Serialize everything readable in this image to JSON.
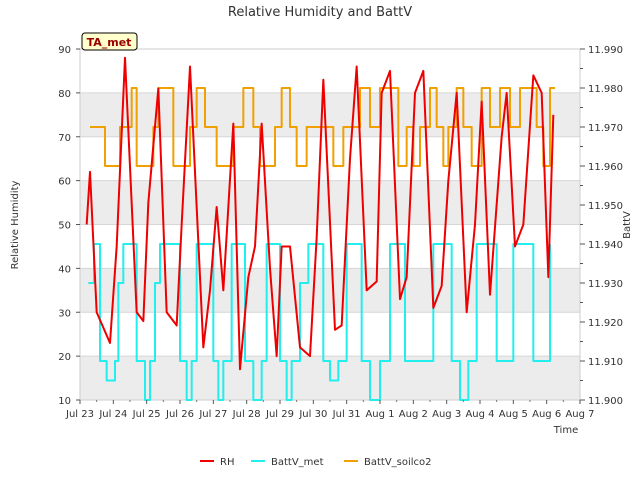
{
  "chart_data": {
    "type": "line",
    "title": "Relative Humidity and BattV",
    "xlabel": "Time",
    "ylabel": "Relative Humidity",
    "y2label": "BattV",
    "annotation": "TA_met",
    "xlim": [
      0,
      15
    ],
    "x_ticks": [
      0,
      1,
      2,
      3,
      4,
      5,
      6,
      7,
      8,
      9,
      10,
      11,
      12,
      13,
      14,
      15
    ],
    "x_tick_labels": [
      "Jul 23",
      "Jul 24",
      "Jul 25",
      "Jul 26",
      "Jul 27",
      "Jul 28",
      "Jul 29",
      "Jul 30",
      "Jul 31",
      "Aug 1",
      "Aug 2",
      "Aug 3",
      "Aug 4",
      "Aug 5",
      "Aug 6",
      "Aug 7"
    ],
    "ylim": [
      10,
      90
    ],
    "y_ticks": [
      10,
      20,
      30,
      40,
      50,
      60,
      70,
      80,
      90
    ],
    "y_tick_labels": [
      "10",
      "20",
      "30",
      "40",
      "50",
      "60",
      "70",
      "80",
      "90"
    ],
    "y2lim": [
      11.9,
      11.99
    ],
    "y2_ticks": [
      11.9,
      11.91,
      11.92,
      11.93,
      11.94,
      11.95,
      11.96,
      11.97,
      11.98,
      11.99
    ],
    "y2_tick_labels": [
      "11.900",
      "11.910",
      "11.920",
      "11.930",
      "11.940",
      "11.950",
      "11.960",
      "11.970",
      "11.980",
      "11.990"
    ],
    "grid": true,
    "legend_position": "bottom",
    "colors": {
      "RH": "#ee0000",
      "BattV_met": "#22eeee",
      "BattV_soilco2": "#f0a000",
      "band": "#ececec",
      "annotation_bg": "#ffffcc",
      "annotation_text": "#990000"
    },
    "series": [
      {
        "name": "RH",
        "axis": "left",
        "x": [
          0.2,
          0.3,
          0.5,
          0.9,
          1.1,
          1.35,
          1.7,
          1.9,
          2.05,
          2.35,
          2.6,
          2.9,
          3.05,
          3.3,
          3.7,
          3.9,
          4.1,
          4.3,
          4.6,
          4.8,
          5.05,
          5.25,
          5.45,
          5.7,
          5.9,
          6.05,
          6.3,
          6.6,
          6.9,
          7.1,
          7.3,
          7.65,
          7.85,
          8.1,
          8.3,
          8.6,
          8.9,
          9.05,
          9.3,
          9.6,
          9.8,
          10.05,
          10.3,
          10.6,
          10.85,
          11.05,
          11.3,
          11.6,
          11.85,
          12.05,
          12.3,
          12.65,
          12.8,
          13.05,
          13.3,
          13.6,
          13.85,
          14.05,
          14.2
        ],
        "y": [
          50,
          62,
          30,
          23,
          45,
          88,
          30,
          28,
          55,
          81,
          30,
          27,
          50,
          86,
          22,
          35,
          54,
          35,
          73,
          17,
          38,
          45,
          73,
          40,
          20,
          45,
          45,
          22,
          20,
          47,
          83,
          26,
          27,
          65,
          86,
          35,
          37,
          80,
          85,
          33,
          38,
          80,
          85,
          31,
          36,
          60,
          80,
          30,
          50,
          78,
          34,
          70,
          80,
          45,
          50,
          84,
          80,
          38,
          75
        ]
      },
      {
        "name": "BattV_met",
        "axis": "right",
        "x": [
          0.25,
          0.42,
          0.6,
          0.8,
          1.05,
          1.15,
          1.3,
          1.5,
          1.7,
          1.95,
          2.1,
          2.25,
          2.4,
          2.8,
          3.0,
          3.2,
          3.35,
          3.5,
          3.8,
          4.0,
          4.15,
          4.3,
          4.55,
          4.75,
          4.95,
          5.2,
          5.45,
          5.6,
          5.8,
          6.0,
          6.2,
          6.35,
          6.6,
          6.85,
          7.1,
          7.3,
          7.5,
          7.75,
          8.0,
          8.2,
          8.45,
          8.7,
          9.0,
          9.3,
          9.55,
          9.75,
          10.05,
          10.3,
          10.6,
          10.85,
          11.15,
          11.4,
          11.65,
          11.9,
          12.2,
          12.5,
          12.75,
          13.0,
          13.3,
          13.6,
          13.9,
          14.1
        ],
        "y": [
          11.93,
          11.94,
          11.91,
          11.905,
          11.91,
          11.93,
          11.94,
          11.94,
          11.91,
          11.9,
          11.91,
          11.93,
          11.94,
          11.94,
          11.91,
          11.9,
          11.91,
          11.94,
          11.94,
          11.91,
          11.9,
          11.91,
          11.94,
          11.94,
          11.91,
          11.9,
          11.91,
          11.94,
          11.94,
          11.91,
          11.9,
          11.91,
          11.93,
          11.94,
          11.94,
          11.91,
          11.905,
          11.91,
          11.94,
          11.94,
          11.91,
          11.9,
          11.91,
          11.94,
          11.94,
          11.91,
          11.91,
          11.91,
          11.94,
          11.94,
          11.91,
          11.9,
          11.91,
          11.94,
          11.94,
          11.91,
          11.91,
          11.94,
          11.94,
          11.91,
          11.91,
          11.94
        ]
      },
      {
        "name": "BattV_soilco2",
        "axis": "right",
        "x": [
          0.3,
          0.5,
          0.75,
          1.05,
          1.2,
          1.35,
          1.55,
          1.7,
          2.0,
          2.2,
          2.35,
          2.6,
          2.8,
          3.0,
          3.3,
          3.5,
          3.75,
          4.1,
          4.4,
          4.6,
          4.9,
          5.2,
          5.4,
          5.6,
          5.85,
          6.05,
          6.3,
          6.5,
          6.8,
          7.05,
          7.3,
          7.6,
          7.9,
          8.2,
          8.4,
          8.7,
          9.0,
          9.3,
          9.55,
          9.8,
          10.0,
          10.2,
          10.5,
          10.7,
          10.9,
          11.05,
          11.3,
          11.5,
          11.75,
          12.05,
          12.3,
          12.6,
          12.9,
          13.2,
          13.45,
          13.7,
          13.9,
          14.1,
          14.25
        ],
        "y": [
          11.97,
          11.97,
          11.96,
          11.96,
          11.97,
          11.97,
          11.98,
          11.96,
          11.96,
          11.97,
          11.98,
          11.98,
          11.96,
          11.96,
          11.97,
          11.98,
          11.97,
          11.96,
          11.96,
          11.97,
          11.98,
          11.97,
          11.96,
          11.96,
          11.97,
          11.98,
          11.97,
          11.96,
          11.97,
          11.97,
          11.97,
          11.96,
          11.97,
          11.97,
          11.98,
          11.97,
          11.98,
          11.98,
          11.96,
          11.97,
          11.96,
          11.97,
          11.98,
          11.97,
          11.96,
          11.97,
          11.98,
          11.97,
          11.96,
          11.98,
          11.97,
          11.98,
          11.97,
          11.98,
          11.98,
          11.97,
          11.96,
          11.98,
          11.98
        ]
      }
    ]
  }
}
